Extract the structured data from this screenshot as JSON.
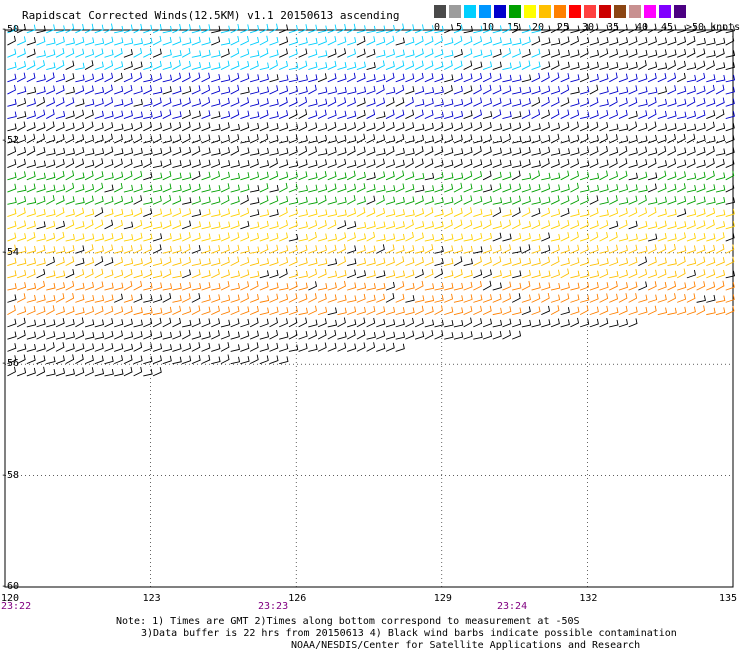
{
  "title": "Rapidscat Corrected Winds(12.5KM) v1.1 20150613 ascending",
  "colorbar": {
    "labels": [
      "0",
      "5",
      "10",
      "15",
      "20",
      "25",
      "30",
      "35",
      "40",
      "45",
      ">50 knots"
    ],
    "colors": [
      "#4a4a4a",
      "#9c9c9c",
      "#00cfff",
      "#0096ff",
      "#0000cc",
      "#00a000",
      "#ffff00",
      "#ffc000",
      "#ff8000",
      "#ff0000",
      "#ff4040",
      "#cc0000",
      "#8b4513",
      "#c89090",
      "#ff00ff",
      "#8000ff",
      "#4b0082"
    ]
  },
  "lat_labels": [
    "-50",
    "-52",
    "-54",
    "-56",
    "-58",
    "-60"
  ],
  "lon_labels": [
    "120",
    "123",
    "126",
    "129",
    "132",
    "135"
  ],
  "time_labels": [
    "23:22",
    "23:23",
    "23:24"
  ],
  "notes": [
    "Note: 1) Times are GMT 2)Times along bottom correspond to measurement at -50S",
    "3)Data buffer is 22 hrs from 20150613 4) Black wind barbs indicate possible contamination",
    "NOAA/NESDIS/Center for Satellite Applications and Research"
  ],
  "map": {
    "lat_range": [
      -60,
      -50
    ],
    "lon_range": [
      120,
      135
    ],
    "wind_color_bands": [
      {
        "lat": [
          -50.8,
          -50.0
        ],
        "color": "#00cfff"
      },
      {
        "lat": [
          -51.6,
          -50.8
        ],
        "color": "#0000cc"
      },
      {
        "lat": [
          -52.6,
          -51.6
        ],
        "color": "#000000"
      },
      {
        "lat": [
          -53.2,
          -52.6
        ],
        "color": "#00a000"
      },
      {
        "lat": [
          -54.0,
          -53.2
        ],
        "color": "#ffd000"
      },
      {
        "lat": [
          -54.6,
          -54.0
        ],
        "color": "#ffc000"
      },
      {
        "lat": [
          -55.3,
          -54.6
        ],
        "color": "#ff8000"
      },
      {
        "lat": [
          -56.4,
          -55.3
        ],
        "color": "#000000"
      }
    ]
  }
}
